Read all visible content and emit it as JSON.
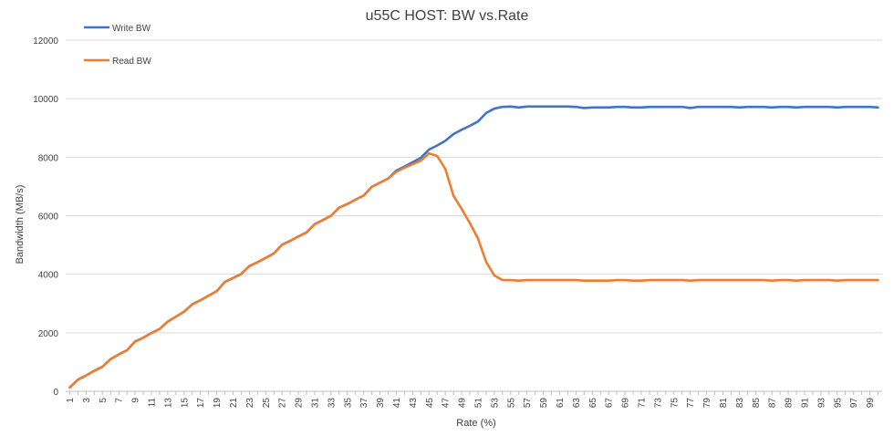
{
  "chart_data": {
    "type": "line",
    "title": "u55C HOST: BW vs.Rate",
    "xlabel": "Rate (%)",
    "ylabel": "Bandwidth (MB/s)",
    "ylim": [
      0,
      12000
    ],
    "yticks": [
      "0",
      "2000",
      "4000",
      "6000",
      "8000",
      "10000",
      "12000"
    ],
    "grid": "horizontal",
    "legend_position": "top-left",
    "x": [
      1,
      2,
      3,
      4,
      5,
      6,
      7,
      8,
      9,
      10,
      11,
      12,
      13,
      14,
      15,
      16,
      17,
      18,
      19,
      20,
      21,
      22,
      23,
      24,
      25,
      26,
      27,
      28,
      29,
      30,
      31,
      32,
      33,
      34,
      35,
      36,
      37,
      38,
      39,
      40,
      41,
      42,
      43,
      44,
      45,
      46,
      47,
      48,
      49,
      50,
      51,
      52,
      53,
      54,
      55,
      56,
      57,
      58,
      59,
      60,
      61,
      62,
      63,
      64,
      65,
      66,
      67,
      68,
      69,
      70,
      71,
      72,
      73,
      74,
      75,
      76,
      77,
      78,
      79,
      80,
      81,
      82,
      83,
      84,
      85,
      86,
      87,
      88,
      89,
      90,
      91,
      92,
      93,
      94,
      95,
      96,
      97,
      98,
      99,
      100
    ],
    "series": [
      {
        "name": "Write BW",
        "color": "#4472C4",
        "values": [
          130,
          400,
          540,
          700,
          840,
          1100,
          1260,
          1400,
          1700,
          1830,
          1990,
          2130,
          2380,
          2550,
          2720,
          2970,
          3110,
          3270,
          3420,
          3740,
          3870,
          4010,
          4280,
          4410,
          4560,
          4710,
          5010,
          5140,
          5290,
          5430,
          5710,
          5850,
          6000,
          6280,
          6400,
          6550,
          6690,
          6990,
          7130,
          7270,
          7540,
          7680,
          7830,
          7980,
          8260,
          8400,
          8560,
          8790,
          8940,
          9070,
          9220,
          9510,
          9660,
          9720,
          9730,
          9700,
          9730,
          9730,
          9730,
          9730,
          9730,
          9730,
          9720,
          9680,
          9700,
          9700,
          9700,
          9720,
          9720,
          9700,
          9700,
          9720,
          9720,
          9720,
          9720,
          9720,
          9680,
          9720,
          9720,
          9720,
          9720,
          9720,
          9700,
          9720,
          9720,
          9720,
          9700,
          9720,
          9720,
          9700,
          9720,
          9720,
          9720,
          9720,
          9700,
          9720,
          9720,
          9720,
          9720,
          9700
        ]
      },
      {
        "name": "Read BW",
        "color": "#ED7D31",
        "values": [
          130,
          400,
          540,
          700,
          840,
          1100,
          1260,
          1400,
          1700,
          1830,
          1990,
          2130,
          2380,
          2550,
          2720,
          2970,
          3110,
          3270,
          3420,
          3740,
          3870,
          4010,
          4280,
          4410,
          4560,
          4710,
          5010,
          5140,
          5290,
          5430,
          5710,
          5850,
          6000,
          6280,
          6400,
          6550,
          6690,
          6990,
          7130,
          7270,
          7500,
          7640,
          7760,
          7880,
          8130,
          8040,
          7600,
          6680,
          6230,
          5750,
          5220,
          4420,
          3960,
          3800,
          3800,
          3780,
          3800,
          3800,
          3800,
          3800,
          3800,
          3800,
          3800,
          3780,
          3780,
          3780,
          3780,
          3800,
          3800,
          3780,
          3780,
          3800,
          3800,
          3800,
          3800,
          3800,
          3780,
          3800,
          3800,
          3800,
          3800,
          3800,
          3800,
          3800,
          3800,
          3800,
          3780,
          3800,
          3800,
          3780,
          3800,
          3800,
          3800,
          3800,
          3780,
          3800,
          3800,
          3800,
          3800,
          3800
        ]
      }
    ]
  }
}
